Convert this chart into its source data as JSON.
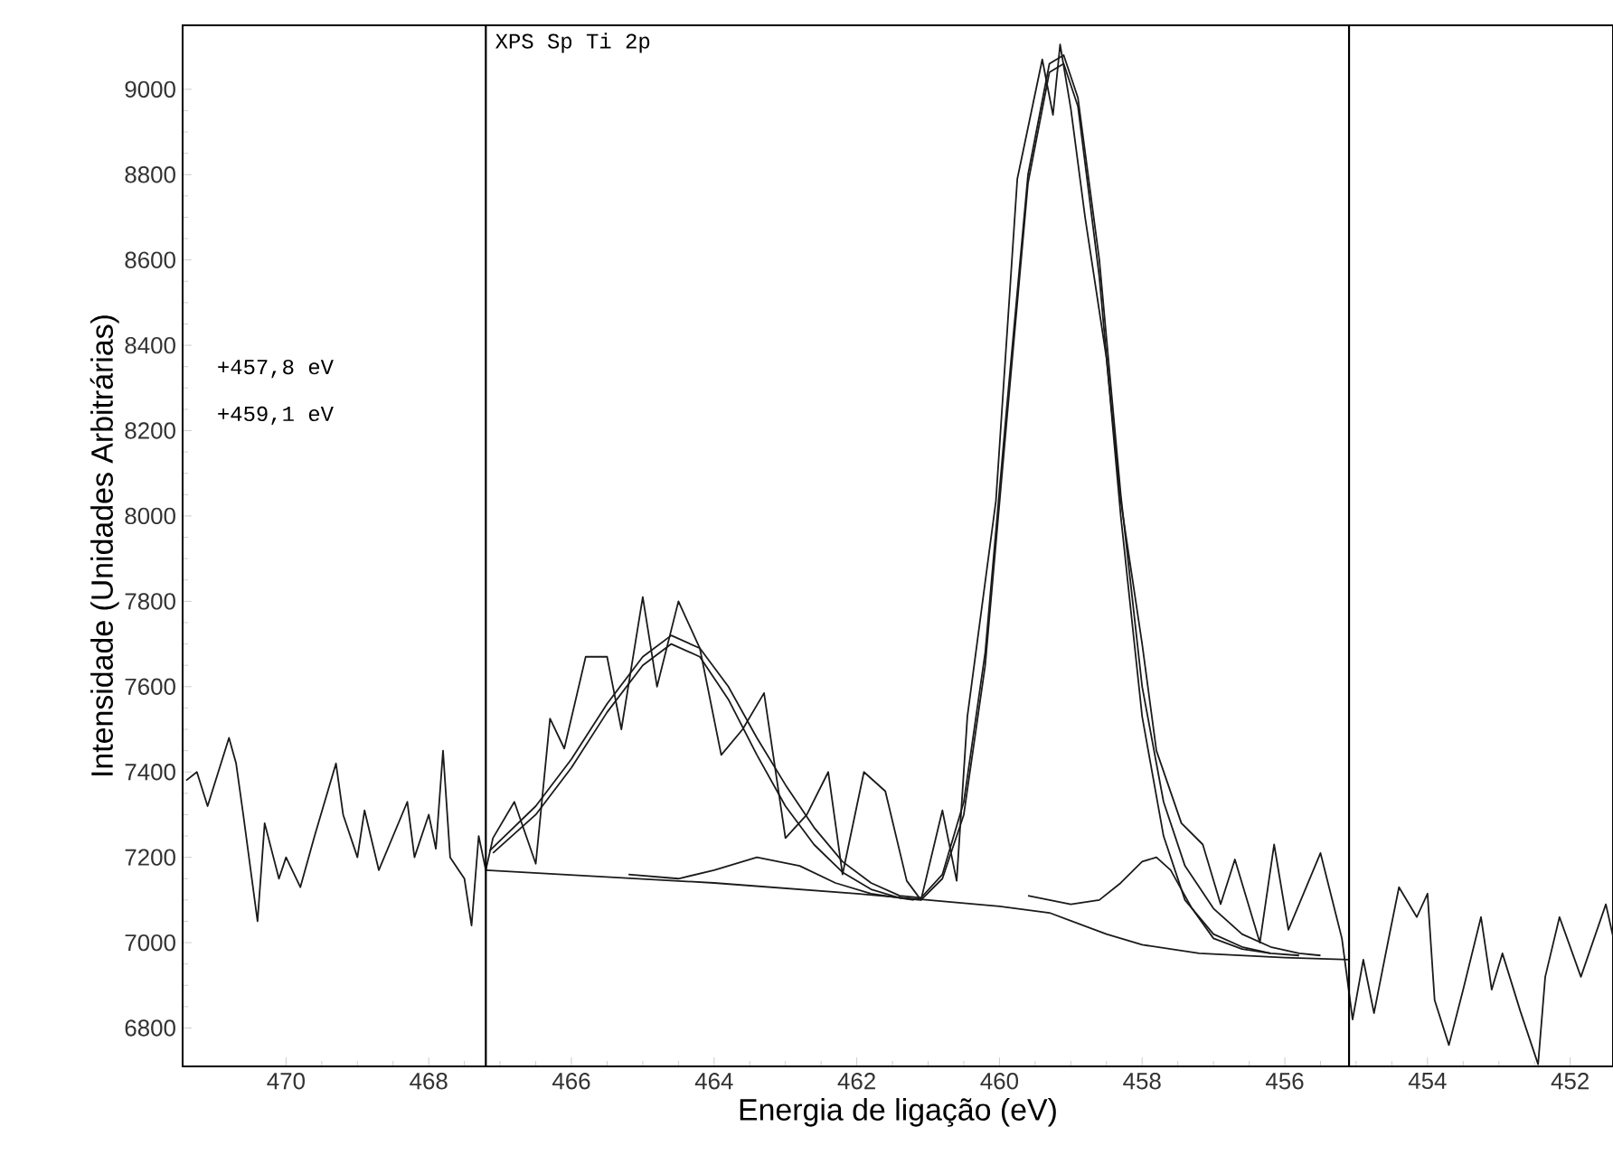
{
  "chart_data": {
    "type": "line",
    "xlabel": "Energia de ligação (eV)",
    "ylabel": "Intensidade (Unidades Arbitrárias)",
    "annotations": [
      "XPS Sp Ti 2p",
      "+457,8 eV",
      "+459,1 eV"
    ],
    "xlim": [
      471.45,
      451.4
    ],
    "ylim": [
      6710,
      9150
    ],
    "xticks": [
      470,
      468,
      466,
      464,
      462,
      460,
      458,
      456,
      454,
      452
    ],
    "yticks": [
      6800,
      7000,
      7200,
      7400,
      7600,
      7800,
      8000,
      8200,
      8400,
      8600,
      8800,
      9000
    ],
    "ref_lines": [
      {
        "axis": "x",
        "value": 467.2,
        "color": "#000000"
      },
      {
        "axis": "x",
        "value": 455.1,
        "color": "#000000"
      }
    ],
    "series": [
      {
        "color": "#1a1a1a",
        "x": [
          471.4,
          471.25,
          471.1,
          470.8,
          470.7,
          470.6,
          470.4,
          470.3,
          470.1,
          470.0,
          469.8,
          469.6,
          469.3,
          469.2,
          469.0,
          468.9,
          468.7,
          468.5,
          468.3,
          468.2,
          468.0,
          467.9,
          467.8,
          467.7,
          467.5,
          467.4,
          467.3,
          467.2,
          467.1,
          466.8,
          466.5,
          466.3,
          466.1,
          465.8,
          465.5,
          465.3,
          465.0,
          464.8,
          464.5,
          464.2,
          463.9,
          463.6,
          463.3,
          463.0,
          462.7,
          462.4,
          462.2,
          461.9,
          461.6,
          461.3,
          461.1,
          460.8,
          460.6,
          460.45,
          460.05,
          459.75,
          459.4,
          459.25,
          459.15,
          459.0,
          458.8,
          458.5,
          458.3,
          458.0,
          457.8,
          457.45,
          457.15,
          456.9,
          456.7,
          456.35,
          456.15,
          455.95,
          455.5,
          455.2,
          455.05,
          454.9,
          454.75,
          454.55,
          454.4,
          454.15,
          454.0,
          453.9,
          453.7,
          453.5,
          453.25,
          453.1,
          452.95,
          452.7,
          452.45,
          452.35,
          452.15,
          451.85,
          451.5,
          451.4
        ],
        "values": [
          7380,
          7400,
          7320,
          7480,
          7420,
          7300,
          7050,
          7280,
          7150,
          7200,
          7130,
          7250,
          7420,
          7300,
          7200,
          7310,
          7170,
          7250,
          7330,
          7200,
          7300,
          7220,
          7450,
          7200,
          7150,
          7040,
          7250,
          7170,
          7245,
          7330,
          7185,
          7525,
          7455,
          7670,
          7670,
          7500,
          7810,
          7600,
          7800,
          7690,
          7440,
          7500,
          7585,
          7245,
          7300,
          7400,
          7160,
          7400,
          7355,
          7145,
          7100,
          7310,
          7145,
          7530,
          8035,
          8790,
          9070,
          8940,
          9105,
          8955,
          8700,
          8370,
          8035,
          7700,
          7450,
          7280,
          7230,
          7090,
          7195,
          7000,
          7230,
          7030,
          7210,
          7010,
          6820,
          6960,
          6835,
          7005,
          7130,
          7060,
          7115,
          6865,
          6760,
          6890,
          7060,
          6890,
          6975,
          6840,
          6715,
          6920,
          7060,
          6920,
          7090,
          7015
        ]
      },
      {
        "color": "#1a1a1a",
        "x": [
          467.15,
          466.5,
          466.0,
          465.5,
          465.0,
          464.6,
          464.2,
          463.8,
          463.4,
          463.0,
          462.6,
          462.2,
          461.8,
          461.4,
          461.1,
          460.8,
          460.5,
          460.2,
          459.9,
          459.6,
          459.3,
          459.1,
          458.9,
          458.6,
          458.3,
          458.0,
          457.7,
          457.4,
          457.0,
          456.6,
          456.2,
          455.8,
          455.5
        ],
        "values": [
          7215,
          7320,
          7430,
          7560,
          7670,
          7720,
          7690,
          7600,
          7480,
          7370,
          7270,
          7190,
          7140,
          7110,
          7105,
          7160,
          7330,
          7680,
          8250,
          8800,
          9060,
          9080,
          8980,
          8600,
          8050,
          7600,
          7330,
          7180,
          7080,
          7020,
          6990,
          6975,
          6970
        ]
      },
      {
        "color": "#1a1a1a",
        "x": [
          467.1,
          466.5,
          466.0,
          465.5,
          465.0,
          464.6,
          464.2,
          463.8,
          463.4,
          463.0,
          462.6,
          462.2,
          461.8,
          461.4,
          461.1
        ],
        "values": [
          7210,
          7300,
          7410,
          7540,
          7650,
          7700,
          7670,
          7570,
          7440,
          7320,
          7230,
          7165,
          7125,
          7105,
          7100
        ]
      },
      {
        "color": "#1a1a1a",
        "x": [
          461.1,
          460.8,
          460.5,
          460.2,
          459.9,
          459.6,
          459.3,
          459.1,
          458.9,
          458.6,
          458.3,
          458.0,
          457.7,
          457.4,
          457.0,
          456.6,
          456.2,
          455.8
        ],
        "values": [
          7100,
          7150,
          7300,
          7650,
          8220,
          8780,
          9040,
          9060,
          8960,
          8560,
          8000,
          7530,
          7250,
          7100,
          7020,
          6990,
          6975,
          6970
        ]
      },
      {
        "color": "#1a1a1a",
        "x": [
          459.6,
          459.0,
          458.6,
          458.3,
          458.0,
          457.8,
          457.6,
          457.3,
          457.0,
          456.6,
          456.2
        ],
        "values": [
          7110,
          7090,
          7100,
          7140,
          7190,
          7200,
          7170,
          7080,
          7010,
          6985,
          6975
        ]
      },
      {
        "color": "#1a1a1a",
        "x": [
          465.2,
          464.5,
          464.0,
          463.4,
          462.8,
          462.3,
          461.8,
          461.2
        ],
        "values": [
          7160,
          7150,
          7170,
          7200,
          7180,
          7140,
          7115,
          7100
        ]
      },
      {
        "color": "#1a1a1a",
        "x": [
          467.2,
          464.0,
          462.0,
          461.0,
          460.0,
          459.3,
          458.5,
          458.0,
          457.2,
          456.0,
          455.1
        ],
        "values": [
          7170,
          7140,
          7115,
          7100,
          7085,
          7070,
          7020,
          6995,
          6975,
          6965,
          6960
        ]
      }
    ]
  }
}
